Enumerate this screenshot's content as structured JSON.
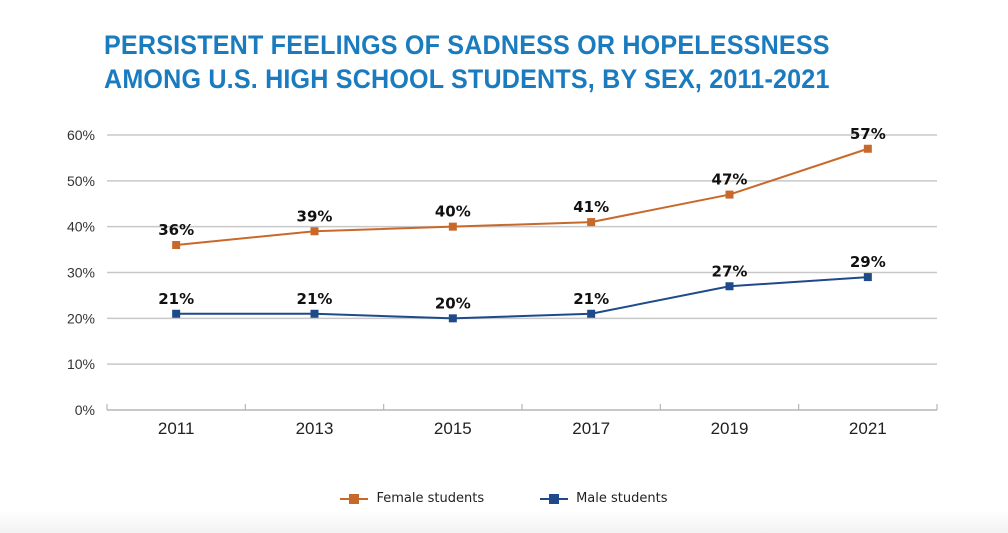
{
  "chart_data": {
    "type": "line",
    "title": "PERSISTENT FEELINGS OF SADNESS OR HOPELESSNESS AMONG U.S. HIGH SCHOOL STUDENTS, BY SEX, 2011-2021",
    "title_lines": [
      "PERSISTENT FEELINGS OF SADNESS OR HOPELESSNESS",
      "AMONG U.S. HIGH SCHOOL STUDENTS, BY SEX, 2011-2021"
    ],
    "xlabel": "",
    "ylabel": "",
    "categories": [
      "2011",
      "2013",
      "2015",
      "2017",
      "2019",
      "2021"
    ],
    "yticks": [
      "0%",
      "10%",
      "20%",
      "30%",
      "40%",
      "50%",
      "60%"
    ],
    "ylim": [
      0,
      60
    ],
    "grid": true,
    "legend_position": "bottom",
    "series": [
      {
        "name": "Female students",
        "color": "#c8692c",
        "values": [
          36,
          39,
          40,
          41,
          47,
          57
        ],
        "labels": [
          "36%",
          "39%",
          "40%",
          "41%",
          "47%",
          "57%"
        ]
      },
      {
        "name": "Male students",
        "color": "#1f4a8a",
        "values": [
          21,
          21,
          20,
          21,
          27,
          29
        ],
        "labels": [
          "21%",
          "21%",
          "20%",
          "21%",
          "27%",
          "29%"
        ]
      }
    ]
  },
  "colors": {
    "title": "#1a7bbf",
    "grid": "#c8c8c8",
    "axis": "#b5b5b5"
  }
}
